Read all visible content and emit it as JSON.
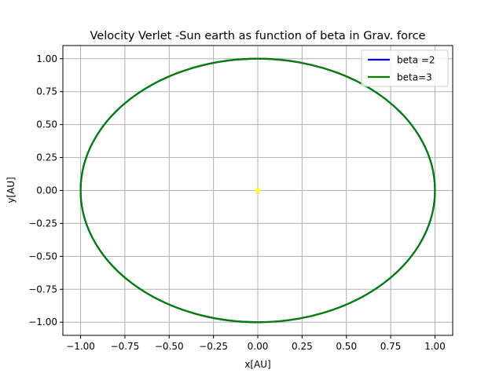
{
  "chart_data": {
    "type": "line",
    "title": "Velocity Verlet -Sun earth as function of beta in Grav. force",
    "xlabel": "x[AU]",
    "ylabel": "y[AU]",
    "xlim": [
      -1.1,
      1.1
    ],
    "ylim": [
      -1.1,
      1.1
    ],
    "xticks": [
      -1.0,
      -0.75,
      -0.5,
      -0.25,
      0.0,
      0.25,
      0.5,
      0.75,
      1.0
    ],
    "yticks": [
      -1.0,
      -0.75,
      -0.5,
      -0.25,
      0.0,
      0.25,
      0.5,
      0.75,
      1.0
    ],
    "xtick_labels": [
      "−1.00",
      "−0.75",
      "−0.50",
      "−0.25",
      "0.00",
      "0.25",
      "0.50",
      "0.75",
      "1.00"
    ],
    "ytick_labels": [
      "−1.00",
      "−0.75",
      "−0.50",
      "−0.25",
      "0.00",
      "0.25",
      "0.50",
      "0.75",
      "1.00"
    ],
    "grid": true,
    "legend_position": "top-right",
    "series": [
      {
        "name": "beta =2",
        "color": "#0000ff",
        "shape": "circle",
        "center": [
          0,
          0
        ],
        "radius": 1.0
      },
      {
        "name": "beta=3",
        "color": "#008000",
        "shape": "circle",
        "center": [
          0,
          0
        ],
        "radius": 1.0
      }
    ],
    "points": [
      {
        "x": 0.0,
        "y": 0.0,
        "color": "#ffff33"
      }
    ]
  }
}
